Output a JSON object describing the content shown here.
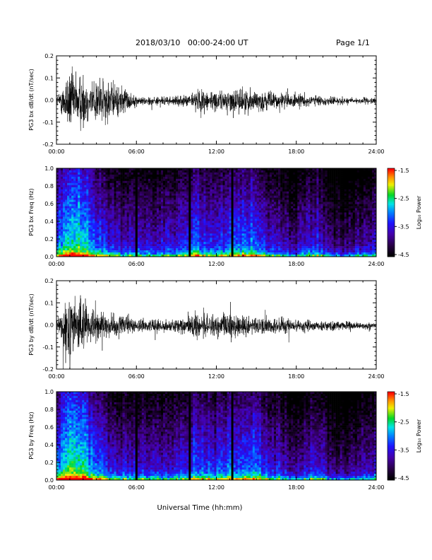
{
  "header": {
    "title": "2018/03/10   00:00-24:00 UT",
    "page": "Page 1/1"
  },
  "xlabel": "Universal Time (hh:mm)",
  "colorbar": {
    "label": "Log₁₀ Power",
    "ticks": [
      "-1.5",
      "-2.5",
      "-3.5",
      "-4.5"
    ],
    "colors": [
      "#ff0000",
      "#ff8000",
      "#ffff00",
      "#00d000",
      "#00ffff",
      "#0080ff",
      "#0000ff",
      "#6000c0",
      "#200040",
      "#000000"
    ]
  },
  "chart_data": [
    {
      "type": "line",
      "title": "",
      "ylabel": "PG3 bx dB/dt (nT/sec)",
      "xlabel": "",
      "xlim": [
        "00:00",
        "24:00"
      ],
      "ylim": [
        -0.2,
        0.2
      ],
      "x_ticks": [
        "00:00",
        "06:00",
        "12:00",
        "18:00",
        "24:00"
      ],
      "y_ticks": [
        "0.2",
        "0.1",
        "0.0",
        "-0.1",
        "-0.2"
      ],
      "envelope": {
        "hours": [
          0,
          0.5,
          1,
          1.5,
          2,
          2.5,
          3,
          3.5,
          4,
          4.5,
          5,
          5.5,
          6,
          7,
          8,
          9,
          10,
          10.5,
          11,
          11.5,
          12,
          12.5,
          13,
          13.5,
          14,
          15,
          16,
          17,
          18,
          19,
          20,
          21,
          22,
          23,
          24
        ],
        "amplitude": [
          0.02,
          0.08,
          0.16,
          0.12,
          0.14,
          0.09,
          0.12,
          0.1,
          0.1,
          0.07,
          0.08,
          0.04,
          0.02,
          0.02,
          0.02,
          0.02,
          0.03,
          0.05,
          0.06,
          0.05,
          0.04,
          0.05,
          0.05,
          0.06,
          0.06,
          0.05,
          0.04,
          0.04,
          0.03,
          0.03,
          0.02,
          0.02,
          0.015,
          0.015,
          0.015
        ]
      }
    },
    {
      "type": "heatmap",
      "title": "",
      "ylabel": "PG3 bx Freq (Hz)",
      "xlim": [
        "00:00",
        "24:00"
      ],
      "ylim": [
        0.0,
        1.0
      ],
      "x_ticks": [
        "00:00",
        "06:00",
        "12:00",
        "18:00",
        "24:00"
      ],
      "y_ticks": [
        "1.0",
        "0.8",
        "0.6",
        "0.4",
        "0.2",
        "0.0"
      ],
      "zlim": [
        -4.5,
        -1.5
      ],
      "data_gaps_hours": [
        6.0,
        10.0,
        13.2
      ]
    },
    {
      "type": "line",
      "title": "",
      "ylabel": "PG3 by dB/dt (nT/sec)",
      "xlabel": "",
      "xlim": [
        "00:00",
        "24:00"
      ],
      "ylim": [
        -0.2,
        0.2
      ],
      "x_ticks": [
        "00:00",
        "06:00",
        "12:00",
        "18:00",
        "24:00"
      ],
      "y_ticks": [
        "0.2",
        "0.1",
        "0.0",
        "-0.1",
        "-0.2"
      ],
      "envelope": {
        "hours": [
          0,
          0.5,
          1,
          1.5,
          2,
          2.5,
          3,
          3.5,
          4,
          4.5,
          5,
          5.5,
          6,
          7,
          8,
          9,
          10,
          10.5,
          11,
          11.5,
          12,
          12.5,
          13,
          13.5,
          14,
          15,
          16,
          17,
          18,
          19,
          20,
          21,
          22,
          23,
          24
        ],
        "amplitude": [
          0.02,
          0.09,
          0.17,
          0.14,
          0.12,
          0.08,
          0.07,
          0.06,
          0.05,
          0.05,
          0.05,
          0.04,
          0.03,
          0.03,
          0.03,
          0.03,
          0.04,
          0.06,
          0.07,
          0.05,
          0.04,
          0.06,
          0.06,
          0.06,
          0.05,
          0.04,
          0.04,
          0.04,
          0.03,
          0.03,
          0.025,
          0.02,
          0.02,
          0.015,
          0.015
        ]
      }
    },
    {
      "type": "heatmap",
      "title": "",
      "ylabel": "PG3 by Freq (Hz)",
      "xlim": [
        "00:00",
        "24:00"
      ],
      "ylim": [
        0.0,
        1.0
      ],
      "x_ticks": [
        "00:00",
        "06:00",
        "12:00",
        "18:00",
        "24:00"
      ],
      "y_ticks": [
        "1.0",
        "0.8",
        "0.6",
        "0.4",
        "0.2",
        "0.0"
      ],
      "zlim": [
        -4.5,
        -1.5
      ],
      "data_gaps_hours": [
        6.0,
        10.0,
        13.2
      ]
    }
  ]
}
